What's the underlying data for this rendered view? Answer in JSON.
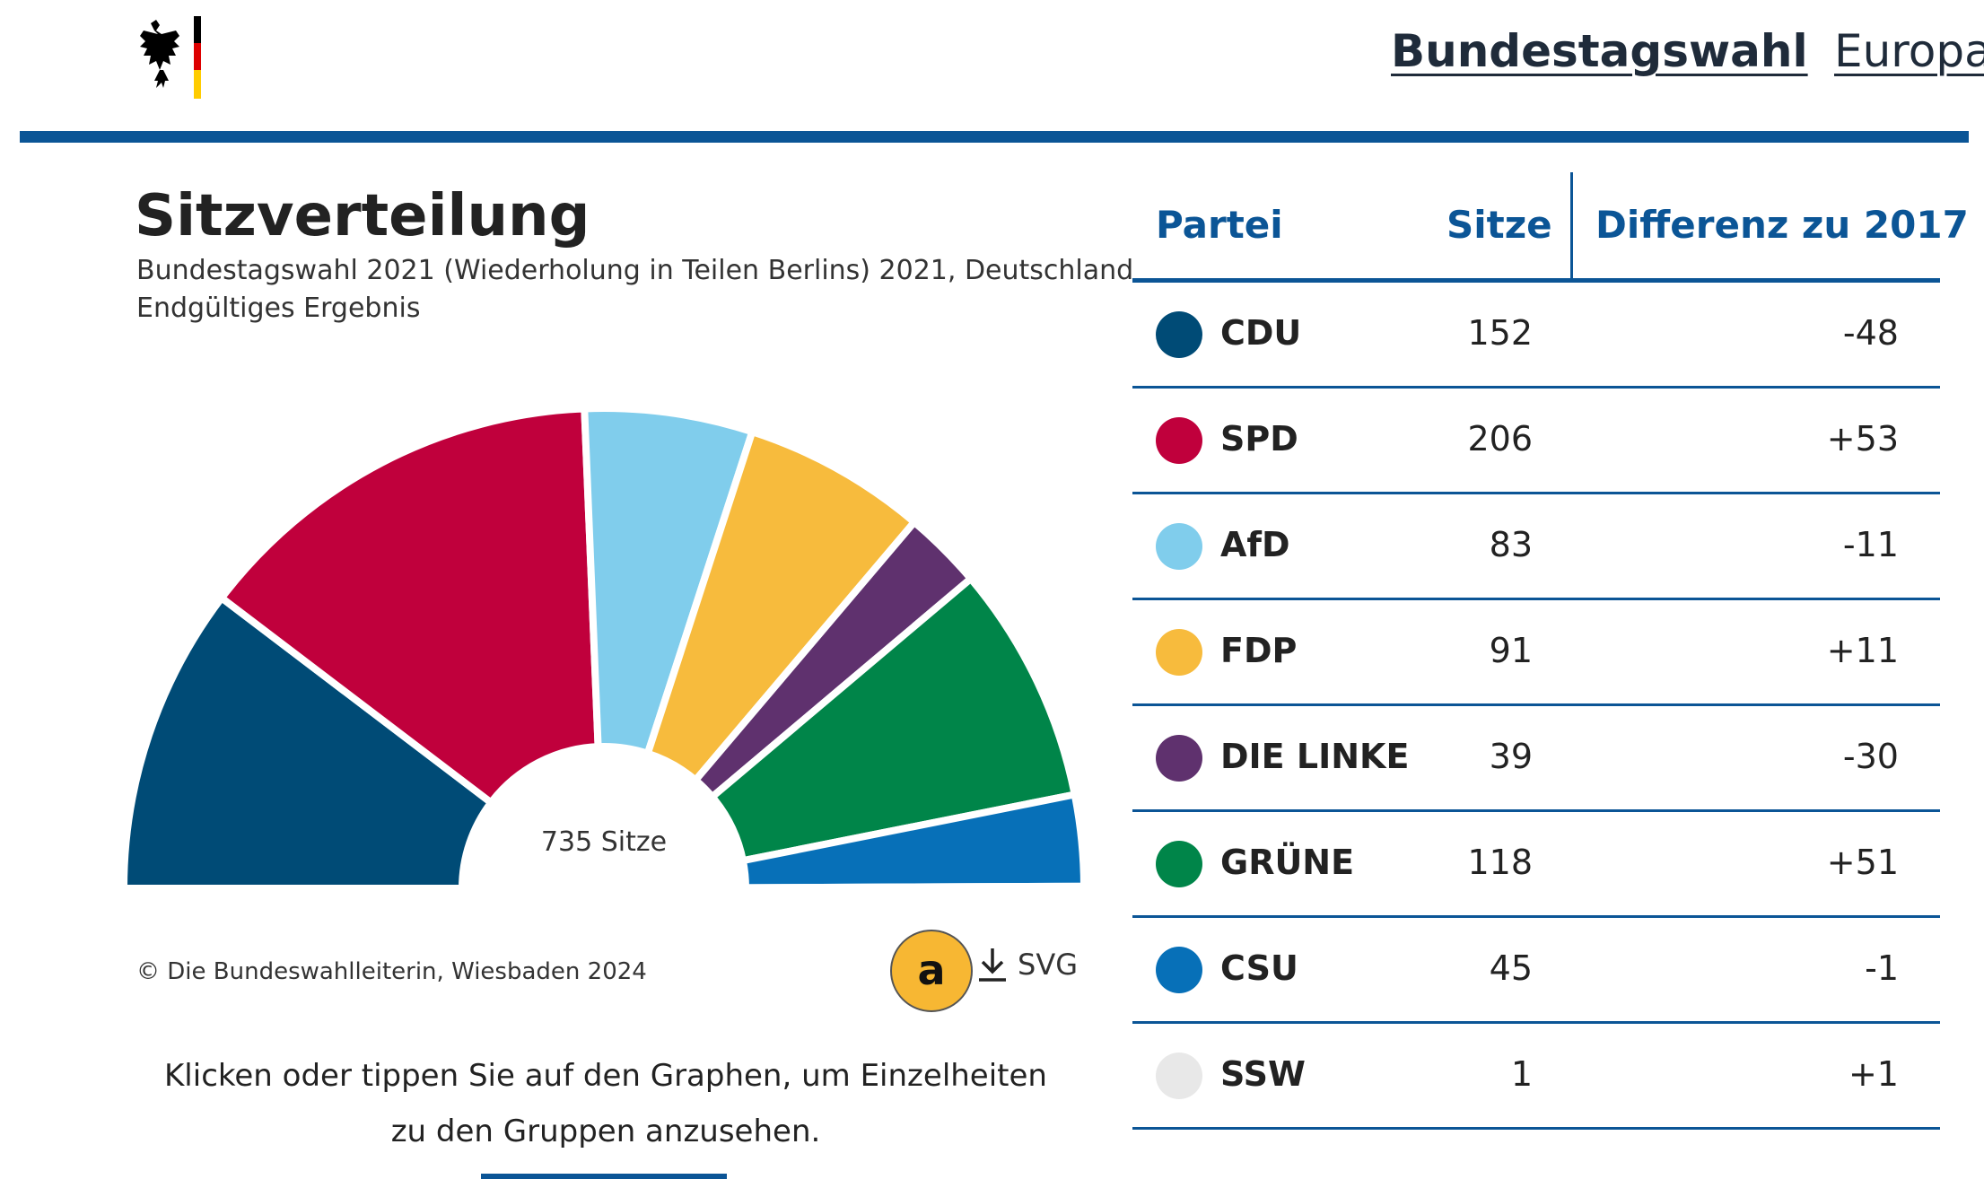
{
  "header": {
    "nav": [
      {
        "label": "Bundestagswahl"
      },
      {
        "label": "Europa"
      }
    ],
    "logo_icon": "federal-eagle-flag-icon"
  },
  "chart_data": {
    "type": "pie",
    "variant": "semicircle-parliament",
    "title": "Sitzverteilung",
    "subtitle_lines": [
      "Bundestagswahl 2021 (Wiederholung in Teilen Berlins) 2021, Deutschland",
      "Endgültiges Ergebnis"
    ],
    "center_label": "735 Sitze",
    "categories": [
      "CDU",
      "SPD",
      "AfD",
      "FDP",
      "DIE LINKE",
      "GRÜNE",
      "CSU",
      "SSW"
    ],
    "values": [
      152,
      206,
      83,
      91,
      39,
      118,
      45,
      1
    ],
    "colors": [
      "#004b76",
      "#c0003c",
      "#80cdec",
      "#f7bb3d",
      "#5f316e",
      "#008549",
      "#0770b8",
      "#e8e8e8"
    ]
  },
  "footer": {
    "copyright": "© Die Bundeswahlleiterin, Wiesbaden 2024",
    "marker": "a",
    "download_label": "SVG",
    "download_icon": "download-icon",
    "hint": "Klicken oder tippen Sie auf den Graphen, um Einzelheiten zu den Gruppen anzusehen."
  },
  "table": {
    "headers": {
      "party": "Partei",
      "seats": "Sitze",
      "diff": "Differenz zu 2017"
    },
    "rows": [
      {
        "party": "CDU",
        "seats": "152",
        "diff": "-48",
        "color": "#004b76"
      },
      {
        "party": "SPD",
        "seats": "206",
        "diff": "+53",
        "color": "#c0003c"
      },
      {
        "party": "AfD",
        "seats": "83",
        "diff": "-11",
        "color": "#80cdec"
      },
      {
        "party": "FDP",
        "seats": "91",
        "diff": "+11",
        "color": "#f7bb3d"
      },
      {
        "party": "DIE LINKE",
        "seats": "39",
        "diff": "-30",
        "color": "#5f316e"
      },
      {
        "party": "GRÜNE",
        "seats": "118",
        "diff": "+51",
        "color": "#008549"
      },
      {
        "party": "CSU",
        "seats": "45",
        "diff": "-1",
        "color": "#0770b8"
      },
      {
        "party": "SSW",
        "seats": "1",
        "diff": "+1",
        "color": "#e8e8e8"
      }
    ]
  }
}
